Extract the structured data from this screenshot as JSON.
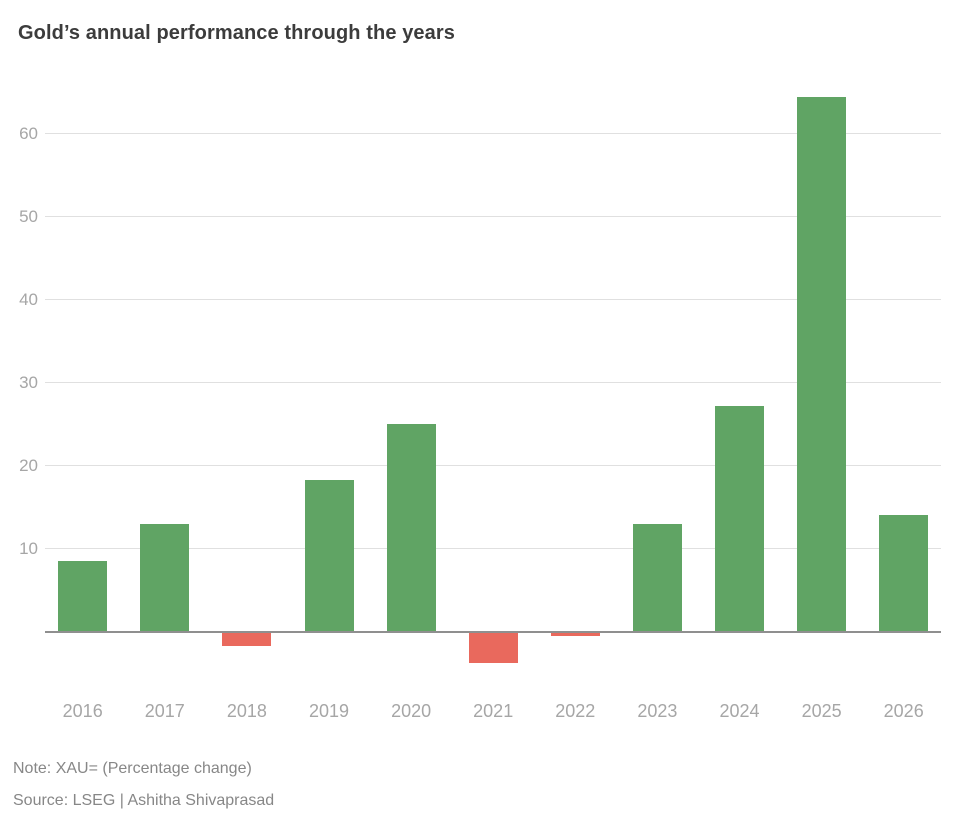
{
  "chart": {
    "title": "Gold’s annual performance through the years",
    "note": "Note: XAU= (Percentage change)",
    "source": "Source: LSEG | Ashitha Shivaprasad"
  },
  "chart_data": {
    "type": "bar",
    "title": "Gold’s annual performance through the years",
    "categories": [
      "2016",
      "2017",
      "2018",
      "2019",
      "2020",
      "2021",
      "2022",
      "2023",
      "2024",
      "2025",
      "2026"
    ],
    "values": [
      8.5,
      13.0,
      -1.8,
      18.3,
      25.0,
      -3.8,
      -0.5,
      13.0,
      27.2,
      64.4,
      14.0
    ],
    "value_unit": "percent change",
    "xlabel": "",
    "ylabel": "",
    "y_ticks": [
      10,
      20,
      30,
      40,
      50,
      60
    ],
    "ylim": [
      -6,
      67
    ],
    "grid": "horizontal",
    "legend": "none",
    "positive_color": "#60a464",
    "negative_color": "#e9695d",
    "gridline_color": "#e0e0e0",
    "baseline_color": "#8f8f8f",
    "tick_label_color": "#a6a6a6",
    "title_color": "#3c3c3c",
    "footnote_color": "#878787",
    "note": "Note: XAU= (Percentage change)",
    "source": "Source: LSEG | Ashitha Shivaprasad"
  }
}
